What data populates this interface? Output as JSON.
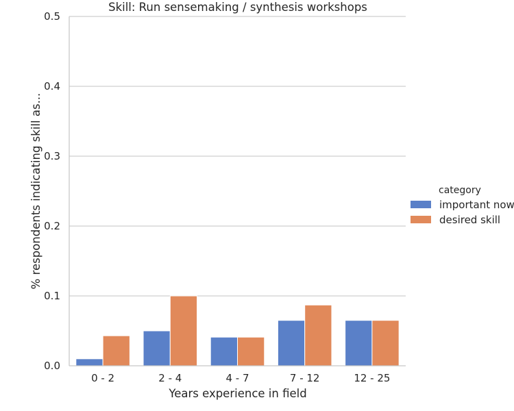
{
  "chart_data": {
    "type": "bar",
    "title": "Skill: Run sensemaking / synthesis workshops",
    "xlabel": "Years experience in field",
    "ylabel": "% respondents indicating skill as...",
    "categories": [
      "0 - 2",
      "2 - 4",
      "4 - 7",
      "7 - 12",
      "12 - 25"
    ],
    "series": [
      {
        "name": "important now",
        "values": [
          0.01,
          0.05,
          0.041,
          0.065,
          0.065
        ],
        "color": "#5a80c8"
      },
      {
        "name": "desired skill",
        "values": [
          0.043,
          0.1,
          0.041,
          0.087,
          0.065
        ],
        "color": "#e1895a"
      }
    ],
    "ylim": [
      0,
      0.5
    ],
    "yticks": [
      "0.0",
      "0.1",
      "0.2",
      "0.3",
      "0.4",
      "0.5"
    ],
    "grid": "horizontal",
    "legend": {
      "title": "category",
      "placement": "right"
    }
  }
}
